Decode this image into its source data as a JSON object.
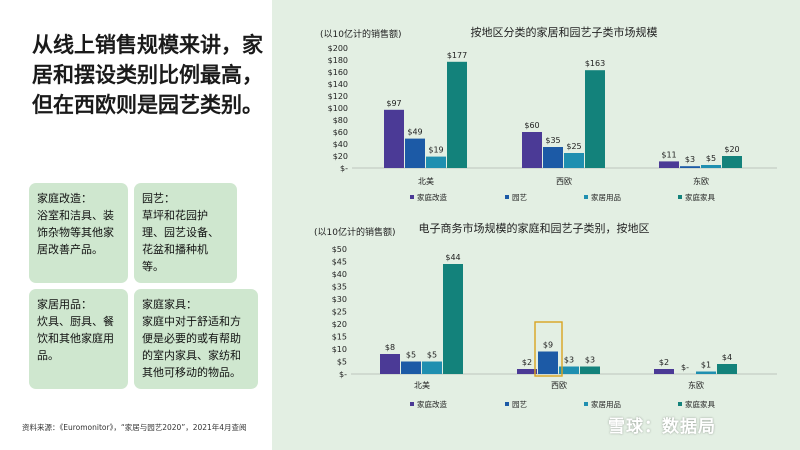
{
  "headline": "从线上销售规模来讲，家居和摆设类别比例最高，但在西欧则是园艺类别。",
  "cards": [
    {
      "title": "家庭改造：",
      "text": "浴室和洁具、装饰杂物等其他家居改善产品。"
    },
    {
      "title": "园艺：",
      "text": "草坪和花园护理、园艺设备、花盆和播种机等。"
    },
    {
      "title": "家居用品：",
      "text": "炊具、厨具、餐饮和其他家庭用品。"
    },
    {
      "title": "家庭家具：",
      "text": "家庭中对于舒适和方便是必要的或有帮助的室内家具、家纺和其他可移动的物品。"
    }
  ],
  "source": "资料来源：《Euromonitor》，“家居与园艺2020”，2021年4月查阅",
  "watermark": "雪球：数据局",
  "colors": {
    "家庭改造": "#4b3a96",
    "园艺": "#1c5aa6",
    "家居用品": "#1f8fb0",
    "家庭家具": "#13827b",
    "highlight": "#d9a320"
  },
  "chart_data": [
    {
      "type": "bar",
      "title": "按地区分类的家居和园艺子类市场规模",
      "ylabel": "(以10亿计的销售额)",
      "ylim": [
        0,
        200
      ],
      "yticks": [
        "$-",
        "$20",
        "$40",
        "$60",
        "$80",
        "$100",
        "$120",
        "$140",
        "$160",
        "$180",
        "$200"
      ],
      "categories": [
        "北美",
        "西欧",
        "东欧"
      ],
      "series": [
        {
          "name": "家庭改造",
          "values": [
            97,
            60,
            11
          ],
          "labels": [
            "$97",
            "$60",
            "$11"
          ]
        },
        {
          "name": "园艺",
          "values": [
            49,
            35,
            3
          ],
          "labels": [
            "$49",
            "$35",
            "$3"
          ]
        },
        {
          "name": "家居用品",
          "values": [
            19,
            25,
            5
          ],
          "labels": [
            "$19",
            "$25",
            "$5"
          ]
        },
        {
          "name": "家庭家具",
          "values": [
            177,
            163,
            20
          ],
          "labels": [
            "$177",
            "$163",
            "$20"
          ]
        }
      ],
      "legend": "bottom"
    },
    {
      "type": "bar",
      "title": "电子商务市场规模的家庭和园艺子类别，按地区",
      "ylabel": "(以10亿计的销售额)",
      "ylim": [
        0,
        50
      ],
      "yticks": [
        "$-",
        "$5",
        "$10",
        "$15",
        "$20",
        "$25",
        "$30",
        "$35",
        "$40",
        "$45",
        "$50"
      ],
      "categories": [
        "北美",
        "西欧",
        "东欧"
      ],
      "series": [
        {
          "name": "家庭改造",
          "values": [
            8,
            2,
            2
          ],
          "labels": [
            "$8",
            "$2",
            "$2"
          ]
        },
        {
          "name": "园艺",
          "values": [
            5,
            9,
            0
          ],
          "labels": [
            "$5",
            "$9",
            "$-"
          ]
        },
        {
          "name": "家居用品",
          "values": [
            5,
            3,
            1
          ],
          "labels": [
            "$5",
            "$3",
            "$1"
          ]
        },
        {
          "name": "家庭家具",
          "values": [
            44,
            3,
            4
          ],
          "labels": [
            "$44",
            "$3",
            "$4"
          ]
        }
      ],
      "legend": "bottom",
      "highlight": {
        "category": "西欧",
        "series": "园艺"
      }
    }
  ]
}
